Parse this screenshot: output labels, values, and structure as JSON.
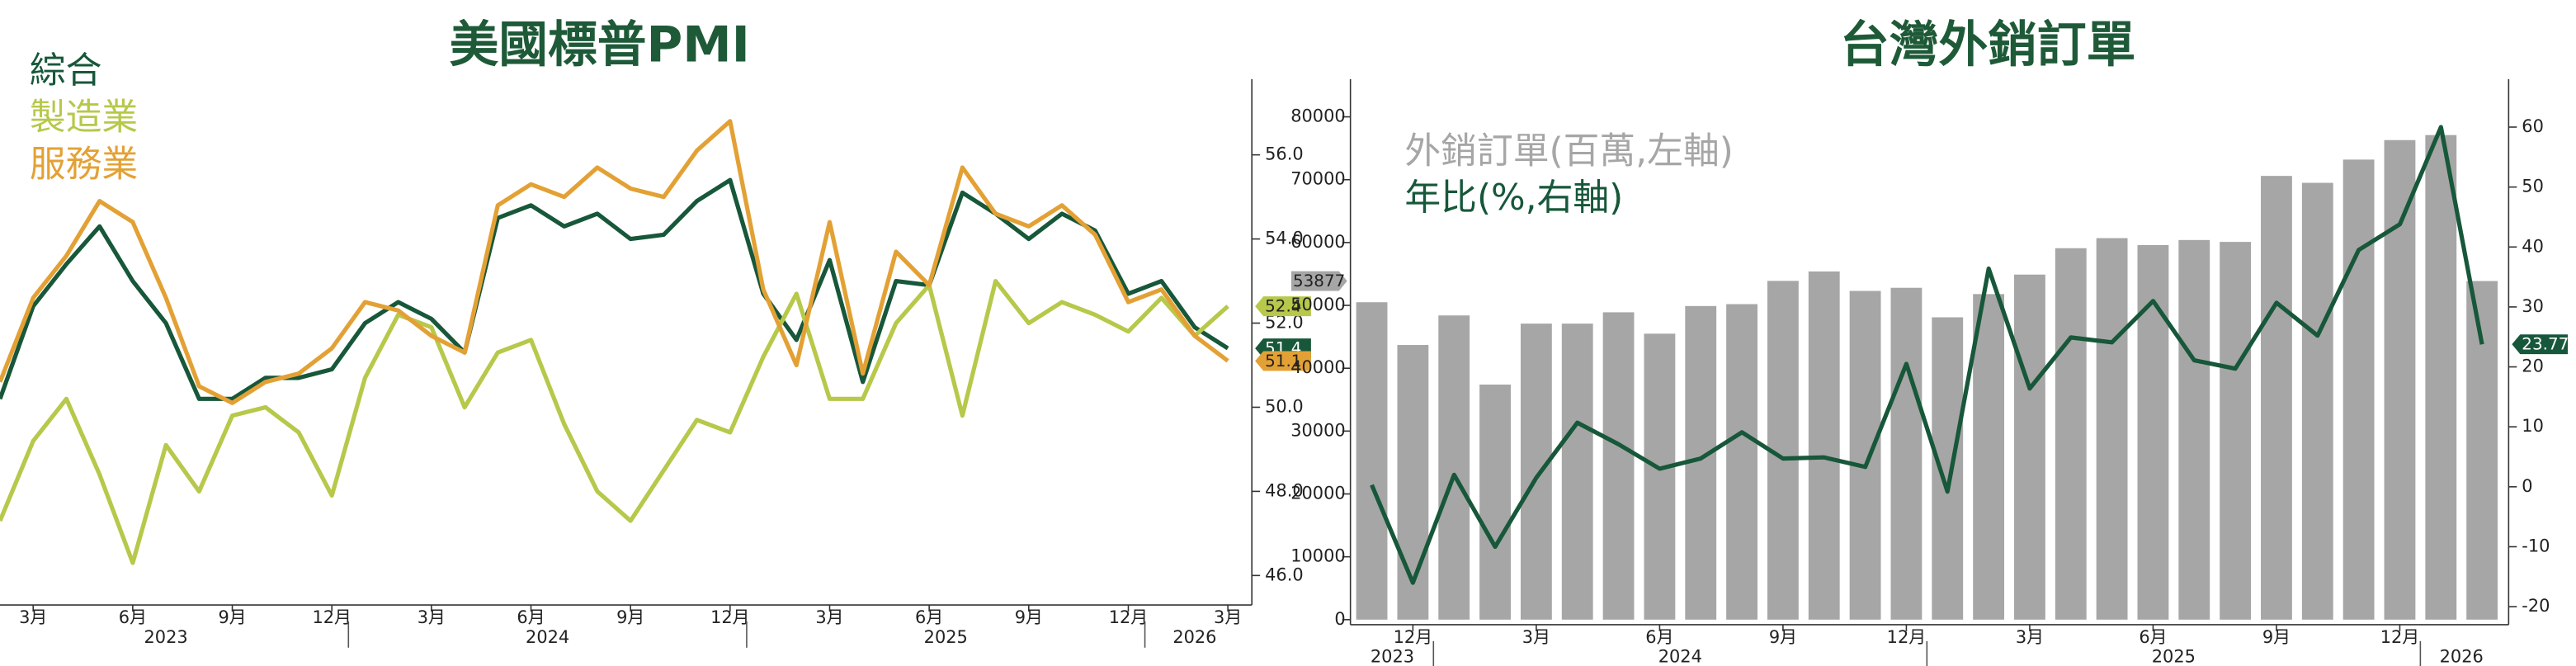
{
  "chart_data": [
    {
      "type": "line",
      "title": "美國標普PMI",
      "y_axis_position": "right",
      "legend_position": "upper left",
      "categories": [
        null,
        "3月",
        null,
        null,
        "6月",
        null,
        null,
        "9月",
        null,
        null,
        "12月",
        null,
        null,
        "3月",
        null,
        null,
        "6月",
        null,
        null,
        "9月",
        null,
        null,
        "12月",
        null,
        null,
        "3月",
        null,
        null,
        "6月",
        null,
        null,
        "9月",
        null,
        null,
        "12月",
        null,
        null,
        "3月"
      ],
      "x_groups": [
        "2023",
        "2024",
        "2025",
        "2026"
      ],
      "ylim": [
        45.3,
        57.8
      ],
      "yticks": [
        {
          "value": 46,
          "label": "46.0"
        },
        {
          "value": 48,
          "label": "48.0"
        },
        {
          "value": 50,
          "label": "50.0"
        },
        {
          "value": 52,
          "label": "52.0"
        },
        {
          "value": 54,
          "label": "54.0"
        },
        {
          "value": 56,
          "label": "56.0"
        }
      ],
      "series": [
        {
          "name": "綜合",
          "color": "#17573a",
          "values": [
            50.2,
            52.4,
            53.4,
            54.3,
            53.0,
            52.0,
            50.2,
            50.2,
            50.7,
            50.7,
            50.9,
            52.0,
            52.5,
            52.1,
            51.3,
            54.5,
            54.8,
            54.3,
            54.6,
            54.0,
            54.1,
            54.9,
            55.4,
            52.7,
            51.6,
            53.5,
            50.6,
            53.0,
            52.9,
            55.1,
            54.6,
            54.0,
            54.6,
            54.2,
            52.7,
            53.0,
            51.9,
            51.4
          ]
        },
        {
          "name": "製造業",
          "color": "#b7c84a",
          "values": [
            47.3,
            49.2,
            50.2,
            48.4,
            46.3,
            49.1,
            48.0,
            49.8,
            50.0,
            49.4,
            47.9,
            50.7,
            52.2,
            51.9,
            50.0,
            51.3,
            51.6,
            49.6,
            48.0,
            47.3,
            48.5,
            49.7,
            49.4,
            51.2,
            52.7,
            50.2,
            50.2,
            52.0,
            52.9,
            49.8,
            53.0,
            52.0,
            52.5,
            52.2,
            51.8,
            52.6,
            51.7,
            52.4
          ]
        },
        {
          "name": "服務業",
          "color": "#e3a135",
          "values": [
            50.6,
            52.6,
            53.6,
            54.9,
            54.4,
            52.6,
            50.5,
            50.1,
            50.6,
            50.8,
            51.4,
            52.5,
            52.3,
            51.7,
            51.3,
            54.8,
            55.3,
            55.0,
            55.7,
            55.2,
            55.0,
            56.1,
            56.8,
            52.8,
            51.0,
            54.4,
            50.8,
            53.7,
            52.9,
            55.7,
            54.6,
            54.3,
            54.8,
            54.1,
            52.5,
            52.8,
            51.7,
            51.1
          ]
        }
      ]
    },
    {
      "type": "combo",
      "title": "台灣外銷訂單",
      "y_axis_position": "left",
      "legend_position": "upper left",
      "categories": [
        null,
        "12月",
        null,
        null,
        "3月",
        null,
        null,
        "6月",
        null,
        null,
        "9月",
        null,
        null,
        "12月",
        null,
        null,
        "3月",
        null,
        null,
        "6月",
        null,
        null,
        "9月",
        null,
        null,
        "12月",
        null,
        null
      ],
      "x_groups": [
        "2023",
        "2024",
        "2025",
        "2026"
      ],
      "ylim": [
        -800,
        86000
      ],
      "yticks": [
        0,
        10000,
        20000,
        30000,
        40000,
        50000,
        60000,
        70000,
        80000
      ],
      "y2lim": [
        -23,
        68
      ],
      "y2ticks": [
        -20,
        -10,
        0,
        10,
        20,
        30,
        40,
        50,
        60
      ],
      "series": [
        {
          "name": "外銷訂單(百萬,左軸)",
          "type": "bar",
          "color": "#a6a6a6",
          "values": [
            50500,
            43700,
            48400,
            37400,
            47100,
            47100,
            48900,
            45500,
            49900,
            50200,
            53900,
            55400,
            52300,
            52800,
            48100,
            51800,
            54900,
            59100,
            60700,
            59600,
            60400,
            60100,
            70600,
            69500,
            73200,
            76300,
            77100,
            53877
          ]
        },
        {
          "name": "年比(%,右軸)",
          "type": "line",
          "axis": "y2",
          "color": "#17573a",
          "values": [
            0.3,
            -16,
            2,
            -10,
            1.5,
            10.7,
            7.1,
            3,
            4.7,
            9.1,
            4.7,
            4.9,
            3.3,
            20.5,
            -0.8,
            36.4,
            16.4,
            24.9,
            24.1,
            31,
            21.1,
            19.7,
            30.7,
            25.2,
            39.5,
            43.8,
            60,
            23.77
          ]
        }
      ]
    }
  ]
}
